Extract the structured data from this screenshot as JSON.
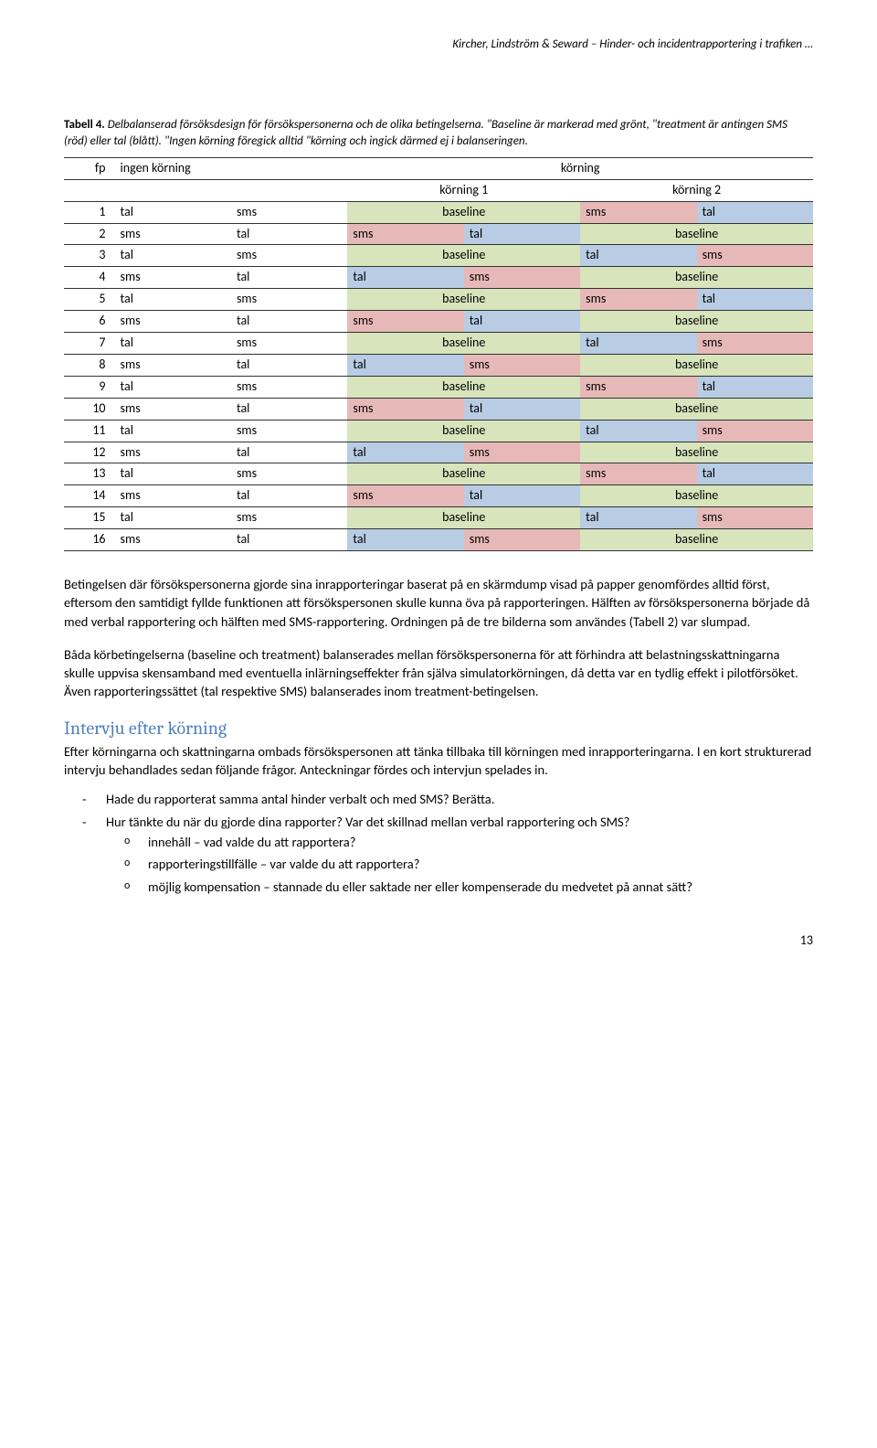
{
  "header": "Kircher, Lindström & Seward – Hinder- och incidentrapportering i trafiken …",
  "caption_lead": "Tabell 4. ",
  "caption_rest": "Delbalanserad försöksdesign för försökspersonerna och de olika betingelserna. \"Baseline är markerad med grönt, \"treatment är antingen SMS (röd) eller tal (blått). \"Ingen körning föregick alltid \"körning och ingick därmed ej i balanseringen.",
  "colors": {
    "green": "#d7e4bc",
    "pink": "#e6b9b8",
    "blue": "#b8cce4",
    "headbg": "#ffffff"
  },
  "table": {
    "headers": {
      "fp": "fp",
      "nokor": "ingen körning",
      "kor": "körning",
      "k1": "körning 1",
      "k2": "körning 2"
    },
    "rows": [
      {
        "n": "1",
        "a": "tal",
        "b": "sms",
        "c": "baseline",
        "d": "sms",
        "e": "tal",
        "cc": "green",
        "dc": "pink",
        "ec": "blue"
      },
      {
        "n": "2",
        "a": "sms",
        "b": "tal",
        "c": "sms",
        "d": "tal",
        "e": "baseline",
        "cc": "pink",
        "dc": "blue",
        "ec": "green"
      },
      {
        "n": "3",
        "a": "tal",
        "b": "sms",
        "c": "baseline",
        "d": "tal",
        "e": "sms",
        "cc": "green",
        "dc": "blue",
        "ec": "pink"
      },
      {
        "n": "4",
        "a": "sms",
        "b": "tal",
        "c": "tal",
        "d": "sms",
        "e": "baseline",
        "cc": "blue",
        "dc": "pink",
        "ec": "green"
      },
      {
        "n": "5",
        "a": "tal",
        "b": "sms",
        "c": "baseline",
        "d": "sms",
        "e": "tal",
        "cc": "green",
        "dc": "pink",
        "ec": "blue"
      },
      {
        "n": "6",
        "a": "sms",
        "b": "tal",
        "c": "sms",
        "d": "tal",
        "e": "baseline",
        "cc": "pink",
        "dc": "blue",
        "ec": "green"
      },
      {
        "n": "7",
        "a": "tal",
        "b": "sms",
        "c": "baseline",
        "d": "tal",
        "e": "sms",
        "cc": "green",
        "dc": "blue",
        "ec": "pink"
      },
      {
        "n": "8",
        "a": "sms",
        "b": "tal",
        "c": "tal",
        "d": "sms",
        "e": "baseline",
        "cc": "blue",
        "dc": "pink",
        "ec": "green"
      },
      {
        "n": "9",
        "a": "tal",
        "b": "sms",
        "c": "baseline",
        "d": "sms",
        "e": "tal",
        "cc": "green",
        "dc": "pink",
        "ec": "blue"
      },
      {
        "n": "10",
        "a": "sms",
        "b": "tal",
        "c": "sms",
        "d": "tal",
        "e": "baseline",
        "cc": "pink",
        "dc": "blue",
        "ec": "green"
      },
      {
        "n": "11",
        "a": "tal",
        "b": "sms",
        "c": "baseline",
        "d": "tal",
        "e": "sms",
        "cc": "green",
        "dc": "blue",
        "ec": "pink"
      },
      {
        "n": "12",
        "a": "sms",
        "b": "tal",
        "c": "tal",
        "d": "sms",
        "e": "baseline",
        "cc": "blue",
        "dc": "pink",
        "ec": "green"
      },
      {
        "n": "13",
        "a": "tal",
        "b": "sms",
        "c": "baseline",
        "d": "sms",
        "e": "tal",
        "cc": "green",
        "dc": "pink",
        "ec": "blue"
      },
      {
        "n": "14",
        "a": "sms",
        "b": "tal",
        "c": "sms",
        "d": "tal",
        "e": "baseline",
        "cc": "pink",
        "dc": "blue",
        "ec": "green"
      },
      {
        "n": "15",
        "a": "tal",
        "b": "sms",
        "c": "baseline",
        "d": "tal",
        "e": "sms",
        "cc": "green",
        "dc": "blue",
        "ec": "pink"
      },
      {
        "n": "16",
        "a": "sms",
        "b": "tal",
        "c": "tal",
        "d": "sms",
        "e": "baseline",
        "cc": "blue",
        "dc": "pink",
        "ec": "green"
      }
    ]
  },
  "para1": "Betingelsen där försökspersonerna gjorde sina inrapporteringar baserat på en skärmdump visad på papper genomfördes alltid först, eftersom den samtidigt fyllde funktionen att försökspersonen skulle kunna öva på rapporteringen. Hälften av försökspersonerna började då med verbal rapportering och hälften med SMS-rapportering. Ordningen på de tre bilderna som användes (Tabell 2) var slumpad.",
  "para2": "Båda körbetingelserna (baseline och treatment) balanserades mellan försökspersonerna för att förhindra att belastningsskattningarna skulle uppvisa skensamband med eventuella inlärningseffekter från själva simulatorkörningen, då detta var en tydlig effekt i pilotförsöket. Även rapporteringssättet (tal respektive SMS) balanserades inom treatment-betingelsen.",
  "section_title": "Intervju efter körning",
  "para3": "Efter körningarna och skattningarna ombads försökspersonen att tänka tillbaka till körningen med inrapporteringarna. I en kort strukturerad intervju behandlades sedan följande frågor. Anteckningar fördes och intervjun spelades in.",
  "bullets": {
    "b1": "Hade du rapporterat samma antal hinder verbalt och med SMS? Berätta.",
    "b2": "Hur tänkte du när du gjorde dina rapporter? Var det skillnad mellan verbal rapportering och SMS?",
    "s1": "innehåll – vad valde du att rapportera?",
    "s2": "rapporteringstillfälle – var valde du att rapportera?",
    "s3": "möjlig kompensation – stannade du eller saktade ner eller kompenserade du medvetet på annat sätt?"
  },
  "page_number": "13"
}
